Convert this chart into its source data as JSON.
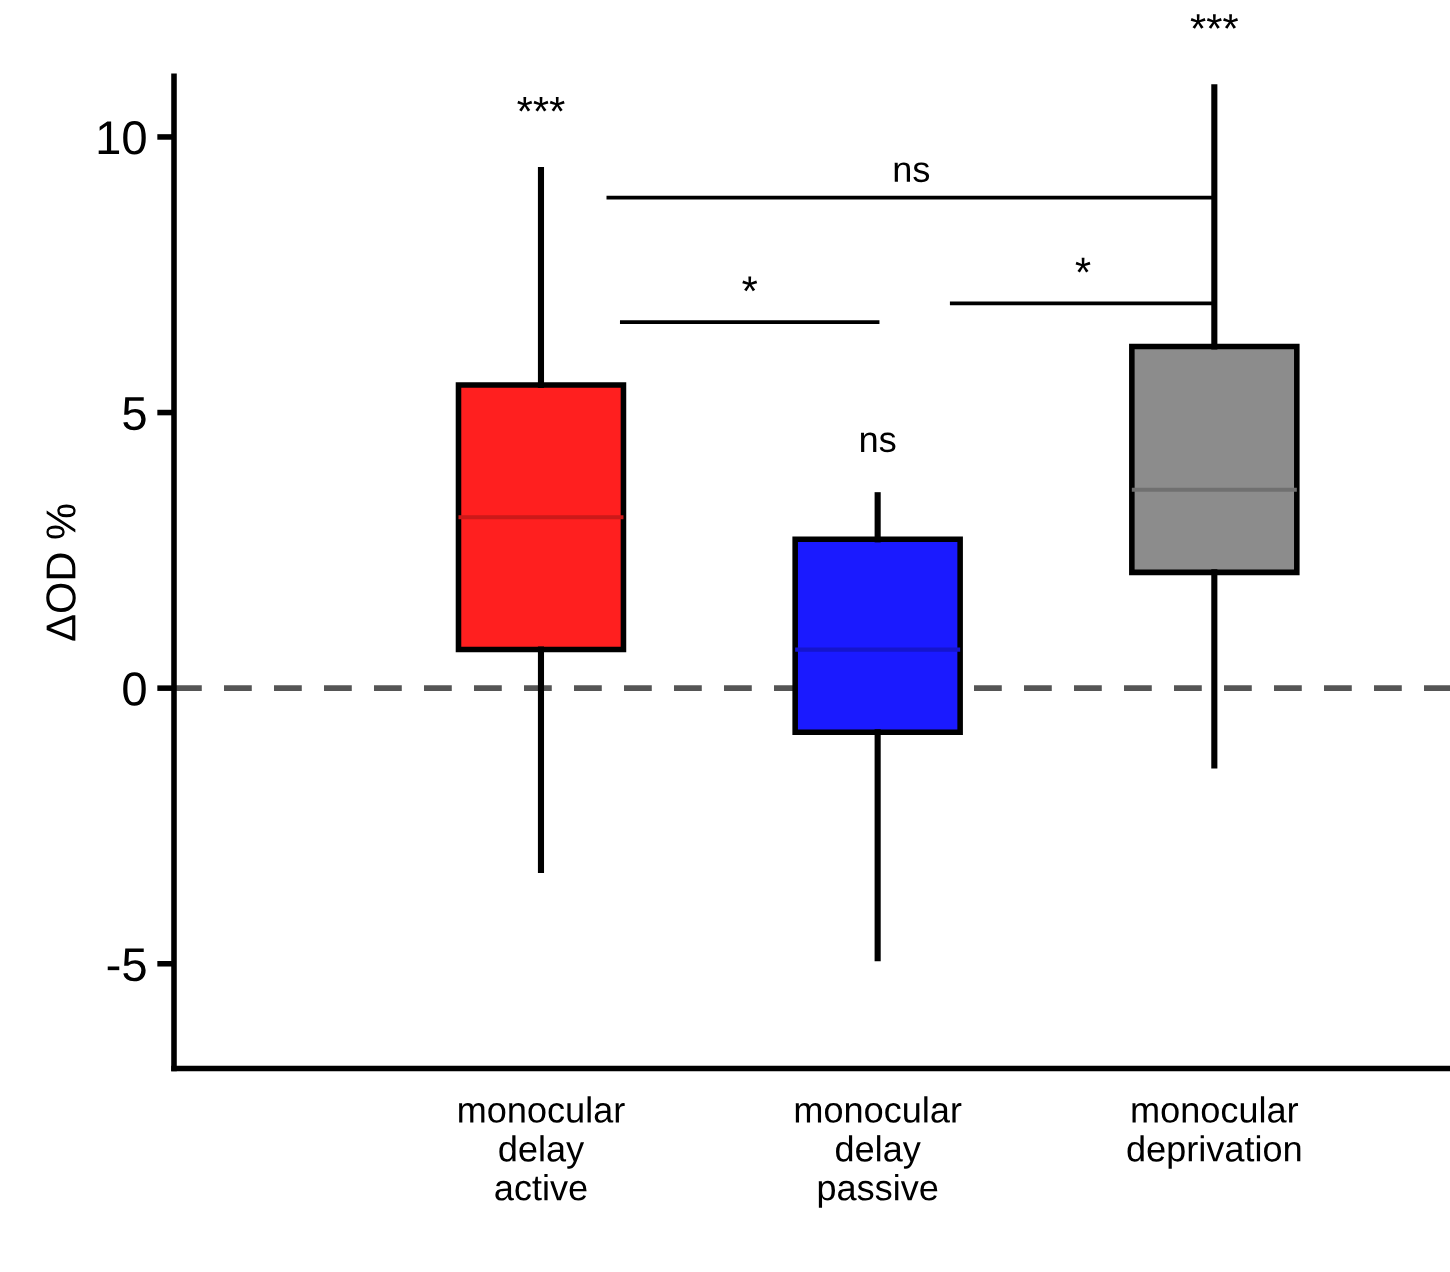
{
  "chart_data": {
    "type": "box",
    "ylabel": "ΔOD %",
    "categories": [
      "monocular\ndelay\nactive",
      "monocular\ndelay\npassive",
      "monocular\ndeprivation"
    ],
    "boxes": [
      {
        "low": -3.3,
        "q1": 0.7,
        "median": 3.1,
        "q3": 5.5,
        "high": 9.4
      },
      {
        "low": -4.9,
        "q1": -0.8,
        "median": 0.7,
        "q3": 2.7,
        "high": 3.5
      },
      {
        "low": -1.4,
        "q1": 2.1,
        "median": 3.6,
        "q3": 6.2,
        "high": 10.9
      }
    ],
    "colors": [
      "#ff1f1f",
      "#1a1aff",
      "#8c8c8c"
    ],
    "ylim": [
      -6.9,
      11.1
    ],
    "yticks": [
      {
        "value": -5,
        "label": "-5"
      },
      0,
      5,
      10
    ],
    "ref_lines": [
      {
        "axis": "y",
        "value": 0,
        "color": "#555555",
        "line_style": "dashed"
      }
    ],
    "annotations": [
      "***",
      "ns",
      "***",
      "*",
      "*",
      "ns"
    ],
    "grid": false
  }
}
